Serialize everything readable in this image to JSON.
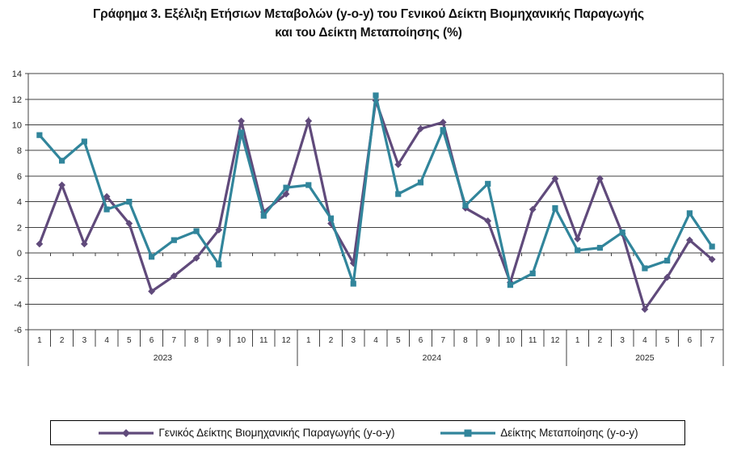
{
  "title": {
    "line1": "Γράφημα 3. Εξέλιξη Ετήσιων Μεταβολών (y-o-y) του Γενικού Δείκτη Βιομηχανικής Παραγωγής",
    "line2": "και του Δείκτη Μεταποίησης (%)"
  },
  "legend": {
    "items": [
      {
        "label": "Γενικός Δείκτης Βιομηχανικής Παραγωγής (y-o-y)",
        "color": "#604a7b",
        "marker": "diamond"
      },
      {
        "label": "Δείκτης Μεταποίησης (y-o-y)",
        "color": "#31859b",
        "marker": "square"
      }
    ]
  },
  "chart_data": {
    "type": "line",
    "title": "Γράφημα 3. Εξέλιξη Ετήσιων Μεταβολών (y-o-y) του Γενικού Δείκτη Βιομηχανικής Παραγωγής και του Δείκτη Μεταποίησης (%)",
    "ylabel": "",
    "xlabel": "",
    "ylim": [
      -6,
      14
    ],
    "ytick_step": 2,
    "grid": true,
    "legend_position": "bottom",
    "axis_color": "#404040",
    "label_color": "#262626",
    "x_groups": [
      {
        "year": "2023",
        "months": [
          "1",
          "2",
          "3",
          "4",
          "5",
          "6",
          "7",
          "8",
          "9",
          "10",
          "11",
          "12"
        ]
      },
      {
        "year": "2024",
        "months": [
          "1",
          "2",
          "3",
          "4",
          "5",
          "6",
          "7",
          "8",
          "9",
          "10",
          "11",
          "12"
        ]
      },
      {
        "year": "2025",
        "months": [
          "1",
          "2",
          "3",
          "4",
          "5",
          "6",
          "7"
        ]
      }
    ],
    "series": [
      {
        "name": "Γενικός Δείκτης Βιομηχανικής Παραγωγής (y-o-y)",
        "color": "#604a7b",
        "marker": "diamond",
        "values": [
          0.7,
          5.3,
          0.7,
          4.4,
          2.3,
          -3.0,
          -1.8,
          -0.4,
          1.8,
          10.3,
          3.2,
          4.6,
          10.3,
          2.3,
          -0.8,
          11.9,
          6.9,
          9.7,
          10.2,
          3.5,
          2.5,
          -2.3,
          3.4,
          5.8,
          1.1,
          5.8,
          1.5,
          -4.4,
          -1.9,
          1.0,
          -0.5
        ]
      },
      {
        "name": "Δείκτης Μεταποίησης (y-o-y)",
        "color": "#31859b",
        "marker": "square",
        "values": [
          9.2,
          7.2,
          8.7,
          3.4,
          4.0,
          -0.3,
          1.0,
          1.7,
          -0.9,
          9.4,
          2.9,
          5.1,
          5.3,
          2.7,
          -2.4,
          12.3,
          4.6,
          5.5,
          9.6,
          3.7,
          5.4,
          -2.5,
          -1.6,
          3.5,
          0.2,
          0.4,
          1.6,
          -1.2,
          -0.6,
          3.1,
          0.5
        ]
      }
    ]
  }
}
